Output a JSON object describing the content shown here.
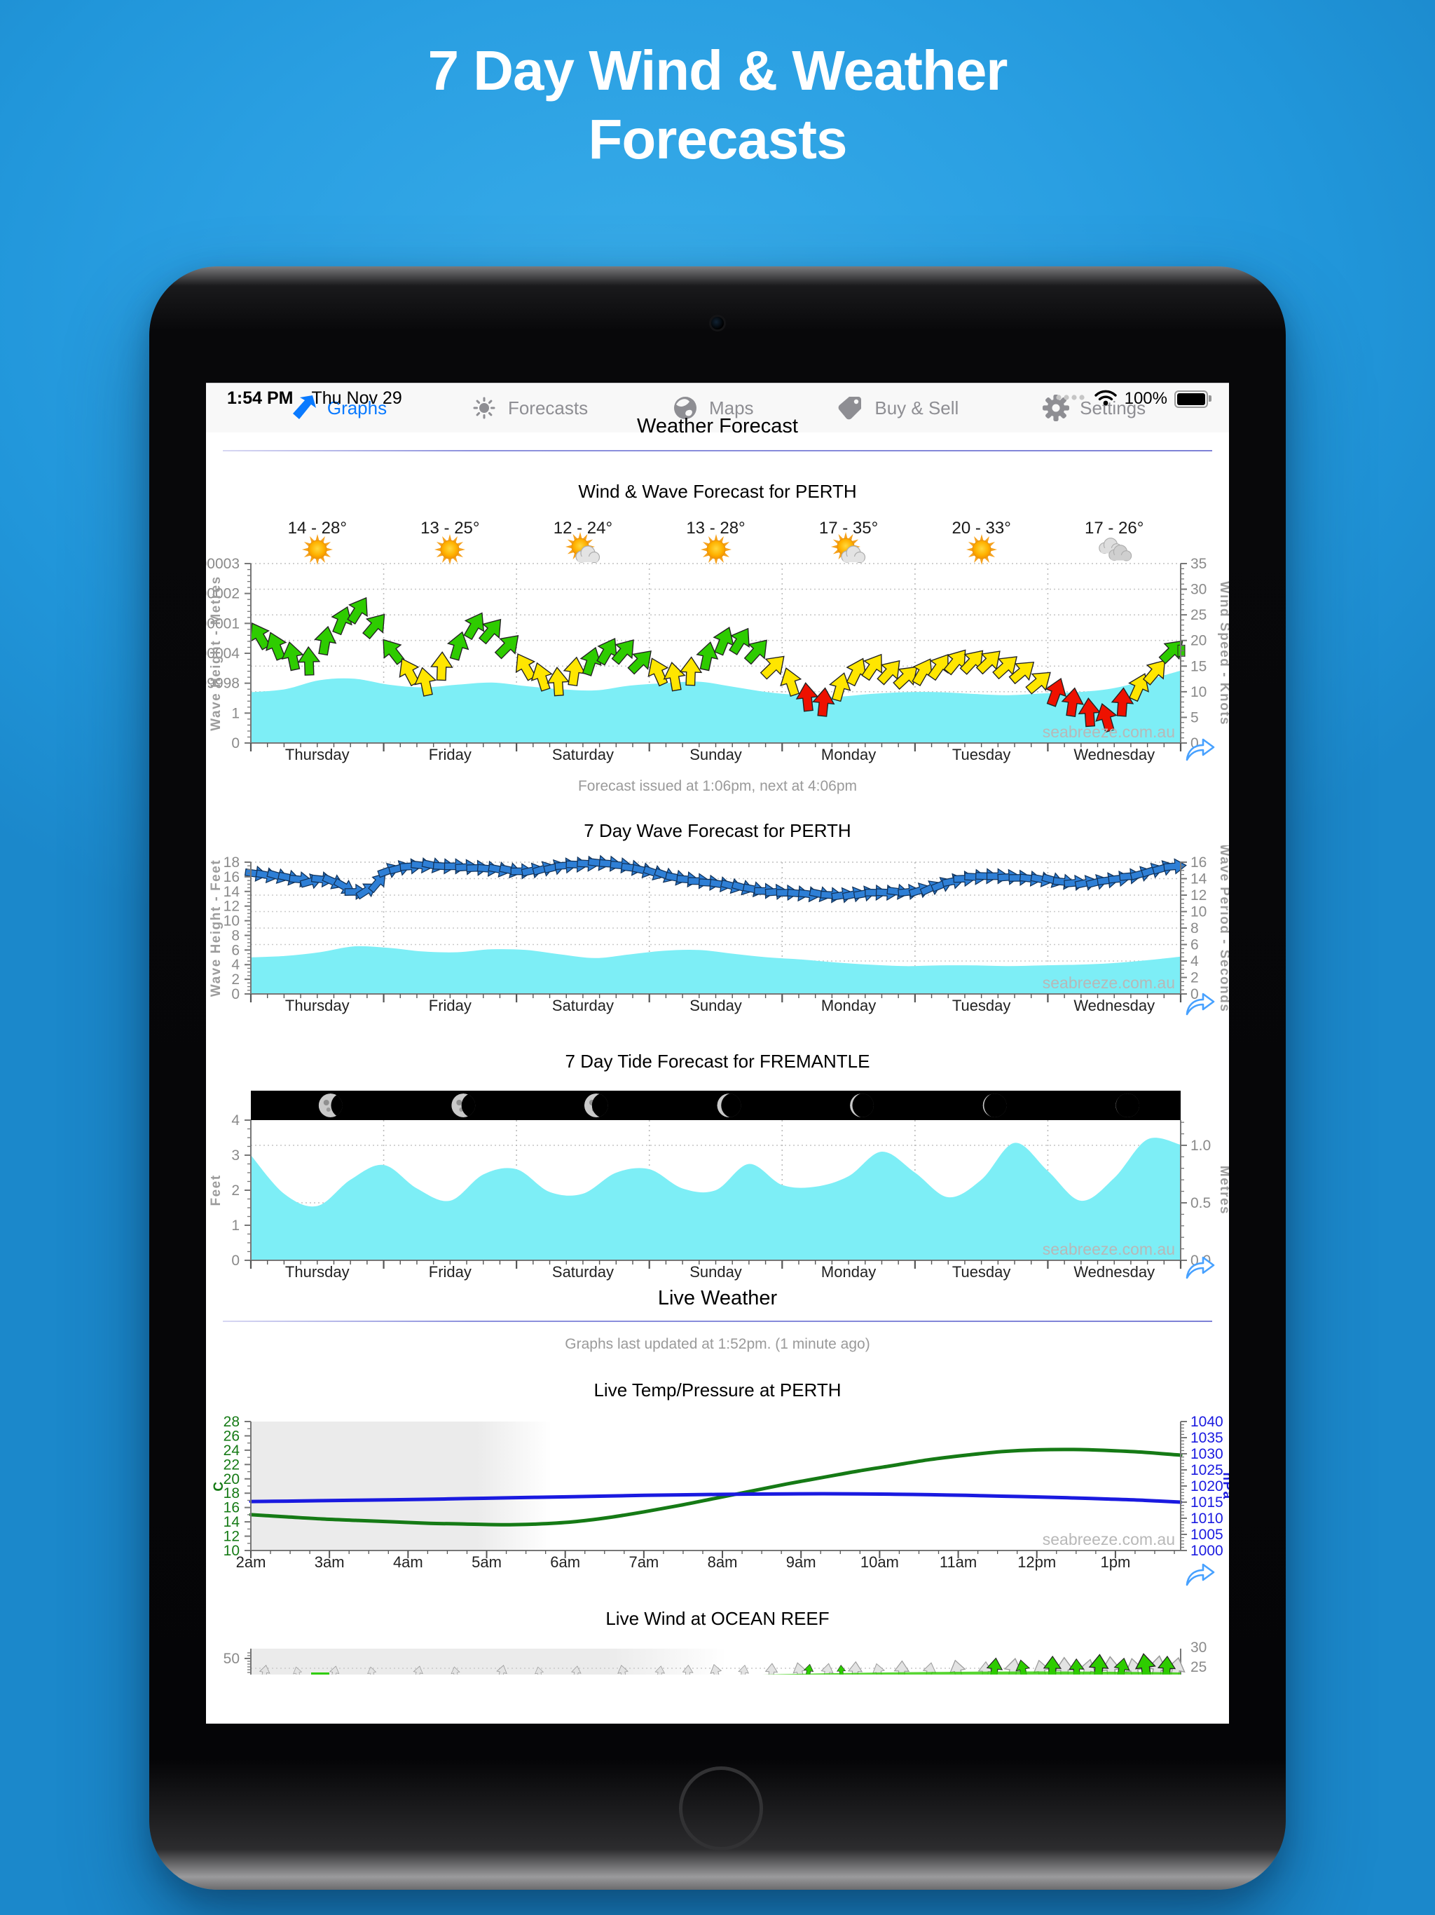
{
  "hero": {
    "line1": "7 Day Wind & Weather",
    "line2": "Forecasts"
  },
  "status_bar": {
    "time": "1:54 PM",
    "date": "Thu Nov 29",
    "battery_pct": "100%",
    "signal_dots": 4
  },
  "nav": {
    "title": "Weather Forecast"
  },
  "notes": {
    "forecast_issued": "Forecast issued at 1:06pm, next at 4:06pm",
    "live_weather": "Live Weather",
    "graphs_updated": "Graphs last updated at 1:52pm. (1 minute ago)"
  },
  "watermark": "seabreeze.com.au",
  "colors": {
    "accent_blue": "#0a7aff",
    "wind_green": "#2ecc00",
    "wind_yellow": "#ffe600",
    "wind_red": "#ee1100",
    "swell_blue": "#2e7fd6",
    "sea_cyan": "#7deef6",
    "temp_green": "#157a15",
    "pressure_blue": "#1a1ae0",
    "night_gray": "#ebebeb",
    "grid_gray": "#c9c9c9",
    "axis_gray": "#8a8a8a"
  },
  "days": [
    "Thursday",
    "Friday",
    "Saturday",
    "Sunday",
    "Monday",
    "Tuesday",
    "Wednesday"
  ],
  "tab_bar": [
    {
      "label": "Graphs",
      "icon": "graphs-arrow",
      "active": true
    },
    {
      "label": "Forecasts",
      "icon": "sun",
      "active": false
    },
    {
      "label": "Maps",
      "icon": "globe",
      "active": false
    },
    {
      "label": "Buy & Sell",
      "icon": "tag",
      "active": false
    },
    {
      "label": "Settings",
      "icon": "gear",
      "active": false
    }
  ],
  "chart_data": [
    {
      "type": "wind-arrows+area",
      "title": "Wind & Wave Forecast for PERTH",
      "day_forecasts": [
        {
          "temp": "14 - 28°",
          "icon": "sunny"
        },
        {
          "temp": "13 - 25°",
          "icon": "sunny"
        },
        {
          "temp": "12 - 24°",
          "icon": "partly-cloudy"
        },
        {
          "temp": "13 - 28°",
          "icon": "sunny"
        },
        {
          "temp": "17 - 35°",
          "icon": "partly-cloudy"
        },
        {
          "temp": "20 - 33°",
          "icon": "sunny"
        },
        {
          "temp": "17 - 26°",
          "icon": "cloudy"
        }
      ],
      "left_axis": {
        "label": "Wave Height - Metres",
        "min": 0,
        "max": 6,
        "major": 1
      },
      "right_axis": {
        "label": "Wind Speed - Knots",
        "min": 0,
        "max": 35,
        "major": 5
      },
      "wind_arrows_kn": [
        [
          21,
          -30,
          "g"
        ],
        [
          19,
          -22,
          "g"
        ],
        [
          17,
          -12,
          "g"
        ],
        [
          16,
          -2,
          "g"
        ],
        [
          20,
          10,
          "g"
        ],
        [
          24,
          22,
          "g"
        ],
        [
          26,
          32,
          "g"
        ],
        [
          23,
          40,
          "g"
        ],
        [
          18,
          -38,
          "g"
        ],
        [
          14,
          -28,
          "y"
        ],
        [
          12,
          -12,
          "y"
        ],
        [
          15,
          2,
          "y"
        ],
        [
          19,
          16,
          "g"
        ],
        [
          23,
          30,
          "g"
        ],
        [
          22,
          40,
          "g"
        ],
        [
          19,
          45,
          "g"
        ],
        [
          15,
          -30,
          "y"
        ],
        [
          13,
          -18,
          "y"
        ],
        [
          12,
          -4,
          "y"
        ],
        [
          14,
          8,
          "y"
        ],
        [
          16,
          18,
          "g"
        ],
        [
          18,
          30,
          "g"
        ],
        [
          18,
          40,
          "g"
        ],
        [
          16,
          45,
          "g"
        ],
        [
          14,
          -24,
          "y"
        ],
        [
          13,
          -10,
          "y"
        ],
        [
          14,
          2,
          "y"
        ],
        [
          17,
          12,
          "g"
        ],
        [
          20,
          22,
          "g"
        ],
        [
          20,
          32,
          "g"
        ],
        [
          18,
          42,
          "g"
        ],
        [
          15,
          46,
          "y"
        ],
        [
          12,
          -18,
          "y"
        ],
        [
          9,
          -6,
          "r"
        ],
        [
          8,
          6,
          "r"
        ],
        [
          11,
          16,
          "y"
        ],
        [
          14,
          26,
          "y"
        ],
        [
          15,
          34,
          "y"
        ],
        [
          14,
          42,
          "y"
        ],
        [
          13,
          47,
          "y"
        ],
        [
          14,
          30,
          "y"
        ],
        [
          15,
          35,
          "y"
        ],
        [
          16,
          39,
          "y"
        ],
        [
          16,
          43,
          "y"
        ],
        [
          16,
          46,
          "y"
        ],
        [
          15,
          48,
          "y"
        ],
        [
          14,
          50,
          "y"
        ],
        [
          12,
          50,
          "y"
        ],
        [
          10,
          20,
          "r"
        ],
        [
          8,
          8,
          "r"
        ],
        [
          6,
          -4,
          "r"
        ],
        [
          5,
          -16,
          "r"
        ],
        [
          8,
          4,
          "r"
        ],
        [
          11,
          24,
          "y"
        ],
        [
          14,
          40,
          "y"
        ],
        [
          18,
          46,
          "g"
        ]
      ],
      "wave_height_m": [
        1.7,
        1.8,
        2.1,
        2.15,
        1.95,
        1.86,
        1.95,
        2.02,
        1.9,
        1.8,
        1.76,
        1.92,
        2.0,
        2.05,
        1.88,
        1.7,
        1.6,
        1.55,
        1.64,
        1.7,
        1.7,
        1.64,
        1.6,
        1.66,
        1.7,
        1.82,
        2.1,
        2.42
      ]
    },
    {
      "type": "swell-arrows+area",
      "title": "7 Day Wave Forecast for PERTH",
      "left_axis": {
        "label": "Wave Height - Feet",
        "min": 0,
        "max": 18,
        "major": 2
      },
      "right_axis": {
        "label": "Wave Period - Seconds",
        "min": 0,
        "max": 16,
        "major": 2
      },
      "wave_period_s": [
        14.6,
        14.4,
        14.3,
        14.1,
        13.9,
        13.7,
        13.9,
        13.6,
        13.0,
        12.4,
        12.6,
        13.6,
        15.0,
        15.3,
        15.5,
        15.6,
        15.6,
        15.5,
        15.5,
        15.4,
        15.3,
        15.2,
        15.1,
        15.0,
        14.9,
        15.0,
        15.2,
        15.4,
        15.6,
        15.7,
        15.8,
        15.9,
        15.8,
        15.6,
        15.3,
        15.0,
        14.7,
        14.4,
        14.1,
        13.9,
        13.7,
        13.5,
        13.3,
        13.1,
        12.9,
        12.7,
        12.5,
        12.4,
        12.3,
        12.2,
        12.1,
        12.1,
        12.0,
        12.0,
        12.1,
        12.2,
        12.3,
        12.3,
        12.4,
        12.4,
        12.6,
        12.9,
        13.3,
        13.7,
        14.0,
        14.2,
        14.3,
        14.3,
        14.2,
        14.1,
        14.0,
        13.9,
        13.8,
        13.6,
        13.5,
        13.5,
        13.6,
        13.8,
        14.0,
        14.3,
        14.6,
        15.0,
        15.3,
        15.5
      ],
      "wave_height_ft": [
        5.0,
        5.2,
        5.7,
        6.5,
        6.3,
        5.8,
        5.7,
        6.1,
        6.0,
        5.4,
        4.9,
        5.4,
        5.9,
        6.0,
        5.5,
        5.0,
        4.7,
        4.3,
        4.0,
        3.8,
        3.9,
        3.9,
        3.8,
        3.9,
        4.0,
        4.2,
        4.6,
        5.1
      ]
    },
    {
      "type": "tide-area",
      "title": "7 Day Tide Forecast for FREMANTLE",
      "left_axis": {
        "label": "Feet",
        "min": 0,
        "max": 4,
        "major": 1
      },
      "right_axis": {
        "label": "Metres",
        "min": 0,
        "max": 1.22,
        "major": 0.5
      },
      "tide_ft": [
        3.0,
        1.9,
        1.55,
        2.3,
        2.72,
        2.05,
        1.7,
        2.45,
        2.6,
        1.95,
        1.9,
        2.5,
        2.6,
        2.05,
        2.0,
        2.75,
        2.15,
        2.1,
        2.4,
        3.1,
        2.5,
        1.8,
        2.3,
        3.35,
        2.55,
        1.7,
        2.35,
        3.45,
        3.3
      ],
      "moon_lit_fraction": [
        0.55,
        0.45,
        0.35,
        0.2,
        0.13,
        0.08,
        0.04
      ]
    },
    {
      "type": "line",
      "title": "Live Temp/Pressure at PERTH",
      "x_labels": [
        "2am",
        "3am",
        "4am",
        "5am",
        "6am",
        "7am",
        "8am",
        "9am",
        "10am",
        "11am",
        "12pm",
        "1pm"
      ],
      "left_axis": {
        "label": "C",
        "min": 10,
        "max": 28,
        "major": 2
      },
      "right_axis": {
        "label": "hPa",
        "min": 1000,
        "max": 1040,
        "major": 5
      },
      "night_end_frac": 0.255,
      "series": [
        {
          "name": "Temperature C",
          "axis": "left",
          "color_key": "temp_green",
          "values": [
            15.0,
            14.7,
            14.4,
            14.2,
            14.0,
            13.8,
            13.7,
            13.6,
            13.7,
            14.0,
            14.6,
            15.4,
            16.3,
            17.3,
            18.3,
            19.3,
            20.2,
            21.1,
            21.9,
            22.7,
            23.3,
            23.8,
            24.05,
            24.1,
            23.95,
            23.7,
            23.3
          ]
        },
        {
          "name": "Pressure hPa",
          "axis": "right",
          "color_key": "pressure_blue",
          "values": [
            1015.2,
            1015.3,
            1015.45,
            1015.6,
            1015.75,
            1015.9,
            1016.1,
            1016.3,
            1016.5,
            1016.7,
            1016.9,
            1017.1,
            1017.25,
            1017.4,
            1017.5,
            1017.55,
            1017.6,
            1017.55,
            1017.45,
            1017.3,
            1017.1,
            1016.85,
            1016.6,
            1016.3,
            1015.95,
            1015.55,
            1015.0
          ]
        }
      ]
    },
    {
      "type": "wind-live-partial",
      "title": "Live Wind at OCEAN REEF",
      "left_axis_tick": "50",
      "right_axis_ticks": [
        "30",
        "25"
      ],
      "night_end_frac": 0.42,
      "gray_arrows": [
        [
          0.015,
          0.6
        ],
        [
          0.05,
          0.5
        ],
        [
          0.09,
          0.55
        ],
        [
          0.13,
          0.5
        ],
        [
          0.18,
          0.55
        ],
        [
          0.22,
          0.5
        ],
        [
          0.27,
          0.6
        ],
        [
          0.31,
          0.5
        ],
        [
          0.35,
          0.55
        ],
        [
          0.4,
          0.6
        ],
        [
          0.44,
          0.55
        ],
        [
          0.47,
          0.6
        ],
        [
          0.5,
          0.65
        ],
        [
          0.53,
          0.6
        ],
        [
          0.56,
          0.7
        ],
        [
          0.59,
          0.75
        ],
        [
          0.62,
          0.7
        ],
        [
          0.65,
          0.8
        ],
        [
          0.675,
          0.7
        ],
        [
          0.7,
          0.85
        ],
        [
          0.73,
          0.75
        ],
        [
          0.76,
          0.9
        ],
        [
          0.79,
          0.8
        ],
        [
          0.82,
          1.0
        ],
        [
          0.85,
          0.9
        ],
        [
          0.875,
          1.05
        ],
        [
          0.9,
          0.95
        ],
        [
          0.925,
          1.1
        ],
        [
          0.95,
          1.0
        ],
        [
          0.975,
          1.15
        ],
        [
          0.995,
          1.05
        ]
      ],
      "green_arrows": [
        [
          0.6,
          0.55
        ],
        [
          0.635,
          0.5
        ],
        [
          0.8,
          0.9
        ],
        [
          0.83,
          0.8
        ],
        [
          0.862,
          1.0
        ],
        [
          0.888,
          0.85
        ],
        [
          0.912,
          1.1
        ],
        [
          0.937,
          0.9
        ],
        [
          0.962,
          1.15
        ],
        [
          0.985,
          1.0
        ]
      ]
    }
  ]
}
